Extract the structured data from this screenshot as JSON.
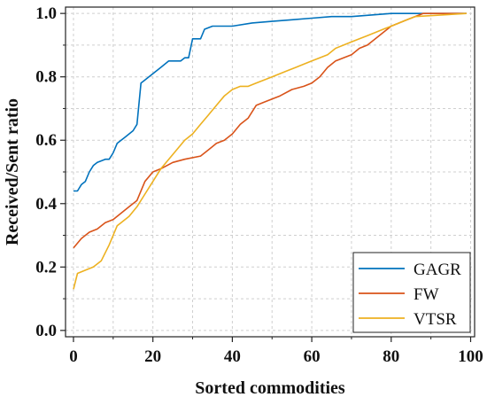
{
  "chart_data": {
    "type": "line",
    "title": "",
    "xlabel": "Sorted commodities",
    "ylabel": "Received/Sent ratio",
    "xlim": [
      -2,
      101
    ],
    "ylim": [
      -0.02,
      1.02
    ],
    "xticks": [
      0,
      20,
      40,
      60,
      80,
      100
    ],
    "xtick_labels": [
      "0",
      "20",
      "40",
      "60",
      "80",
      "100"
    ],
    "yticks": [
      0.0,
      0.2,
      0.4,
      0.6,
      0.8,
      1.0
    ],
    "ytick_labels": [
      "0.0",
      "0.2",
      "0.4",
      "0.6",
      "0.8",
      "1.0"
    ],
    "grid": true,
    "legend": "bottom-right",
    "series": [
      {
        "name": "GAGR",
        "color": "#0072bd",
        "x": [
          0,
          1,
          2,
          3,
          4,
          5,
          6,
          8,
          9,
          10,
          11,
          12,
          13,
          14,
          15,
          16,
          17,
          18,
          20,
          22,
          24,
          26,
          27,
          28,
          29,
          30,
          31,
          32,
          33,
          35,
          40,
          45,
          50,
          55,
          60,
          65,
          70,
          75,
          80,
          85,
          90,
          99
        ],
        "y": [
          0.44,
          0.44,
          0.46,
          0.47,
          0.5,
          0.52,
          0.53,
          0.54,
          0.54,
          0.56,
          0.59,
          0.6,
          0.61,
          0.62,
          0.63,
          0.65,
          0.78,
          0.79,
          0.81,
          0.83,
          0.85,
          0.85,
          0.85,
          0.86,
          0.86,
          0.92,
          0.92,
          0.92,
          0.95,
          0.96,
          0.96,
          0.97,
          0.975,
          0.98,
          0.985,
          0.99,
          0.99,
          0.995,
          1.0,
          1.0,
          1.0,
          1.0
        ]
      },
      {
        "name": "FW",
        "color": "#d95319",
        "x": [
          0,
          2,
          4,
          6,
          8,
          10,
          12,
          14,
          16,
          18,
          20,
          22,
          25,
          28,
          32,
          34,
          35,
          36,
          38,
          40,
          42,
          44,
          46,
          48,
          50,
          52,
          55,
          58,
          60,
          62,
          64,
          66,
          68,
          70,
          72,
          74,
          76,
          78,
          80,
          82,
          84,
          86,
          88,
          99
        ],
        "y": [
          0.26,
          0.29,
          0.31,
          0.32,
          0.34,
          0.35,
          0.37,
          0.39,
          0.41,
          0.47,
          0.5,
          0.51,
          0.53,
          0.54,
          0.55,
          0.57,
          0.58,
          0.59,
          0.6,
          0.62,
          0.65,
          0.67,
          0.71,
          0.72,
          0.73,
          0.74,
          0.76,
          0.77,
          0.78,
          0.8,
          0.83,
          0.85,
          0.86,
          0.87,
          0.89,
          0.9,
          0.92,
          0.94,
          0.96,
          0.97,
          0.98,
          0.99,
          1.0,
          1.0
        ]
      },
      {
        "name": "VTSR",
        "color": "#edb120",
        "x": [
          0,
          1,
          3,
          5,
          7,
          9,
          10,
          11,
          12,
          14,
          16,
          18,
          20,
          22,
          24,
          26,
          28,
          30,
          32,
          34,
          36,
          38,
          40,
          42,
          44,
          46,
          48,
          50,
          52,
          54,
          56,
          58,
          60,
          62,
          64,
          66,
          68,
          70,
          72,
          74,
          76,
          78,
          80,
          82,
          84,
          86,
          99
        ],
        "y": [
          0.13,
          0.18,
          0.19,
          0.2,
          0.22,
          0.27,
          0.3,
          0.33,
          0.34,
          0.36,
          0.39,
          0.43,
          0.47,
          0.51,
          0.54,
          0.57,
          0.6,
          0.62,
          0.65,
          0.68,
          0.71,
          0.74,
          0.76,
          0.77,
          0.77,
          0.78,
          0.79,
          0.8,
          0.81,
          0.82,
          0.83,
          0.84,
          0.85,
          0.86,
          0.87,
          0.89,
          0.9,
          0.91,
          0.92,
          0.93,
          0.94,
          0.95,
          0.96,
          0.97,
          0.98,
          0.99,
          1.0
        ]
      }
    ]
  }
}
